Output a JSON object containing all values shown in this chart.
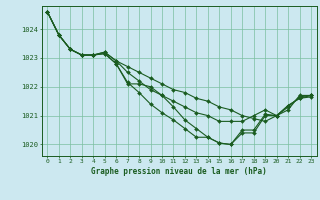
{
  "title": "Graphe pression niveau de la mer (hPa)",
  "bg_color": "#cce8f0",
  "grid_color": "#7bbfa0",
  "line_color": "#1a5c20",
  "xlim": [
    -0.5,
    23.5
  ],
  "ylim": [
    1019.6,
    1024.8
  ],
  "yticks": [
    1020,
    1021,
    1022,
    1023,
    1024
  ],
  "xticks": [
    0,
    1,
    2,
    3,
    4,
    5,
    6,
    7,
    8,
    9,
    10,
    11,
    12,
    13,
    14,
    15,
    16,
    17,
    18,
    19,
    20,
    21,
    22,
    23
  ],
  "lines": [
    [
      1024.6,
      1023.8,
      1023.3,
      1023.1,
      1023.1,
      1023.2,
      1022.9,
      1022.7,
      1022.5,
      1022.3,
      1022.1,
      1021.9,
      1021.8,
      1021.6,
      1021.5,
      1021.3,
      1021.2,
      1021.0,
      1020.9,
      1020.8,
      1021.0,
      1021.2,
      1021.7,
      1021.7
    ],
    [
      1024.6,
      1023.8,
      1023.3,
      1023.1,
      1023.1,
      1023.2,
      1022.9,
      1022.5,
      1022.2,
      1021.9,
      1021.7,
      1021.5,
      1021.3,
      1021.1,
      1021.0,
      1020.8,
      1020.8,
      1020.8,
      1021.0,
      1021.2,
      1021.0,
      1021.3,
      1021.65,
      1021.7
    ],
    [
      1024.6,
      1023.8,
      1023.3,
      1023.1,
      1023.1,
      1023.15,
      1022.8,
      1022.15,
      1021.8,
      1021.4,
      1021.1,
      1020.85,
      1020.55,
      1020.25,
      1020.25,
      1020.05,
      1020.0,
      1020.5,
      1020.5,
      1021.05,
      1021.0,
      1021.35,
      1021.6,
      1021.7
    ],
    [
      1024.6,
      1023.8,
      1023.3,
      1023.1,
      1023.1,
      1023.15,
      1022.8,
      1022.1,
      1022.1,
      1022.0,
      1021.7,
      1021.3,
      1020.85,
      1020.55,
      1020.25,
      1020.05,
      1020.0,
      1020.4,
      1020.4,
      1021.0,
      1021.0,
      1021.35,
      1021.6,
      1021.65
    ]
  ]
}
